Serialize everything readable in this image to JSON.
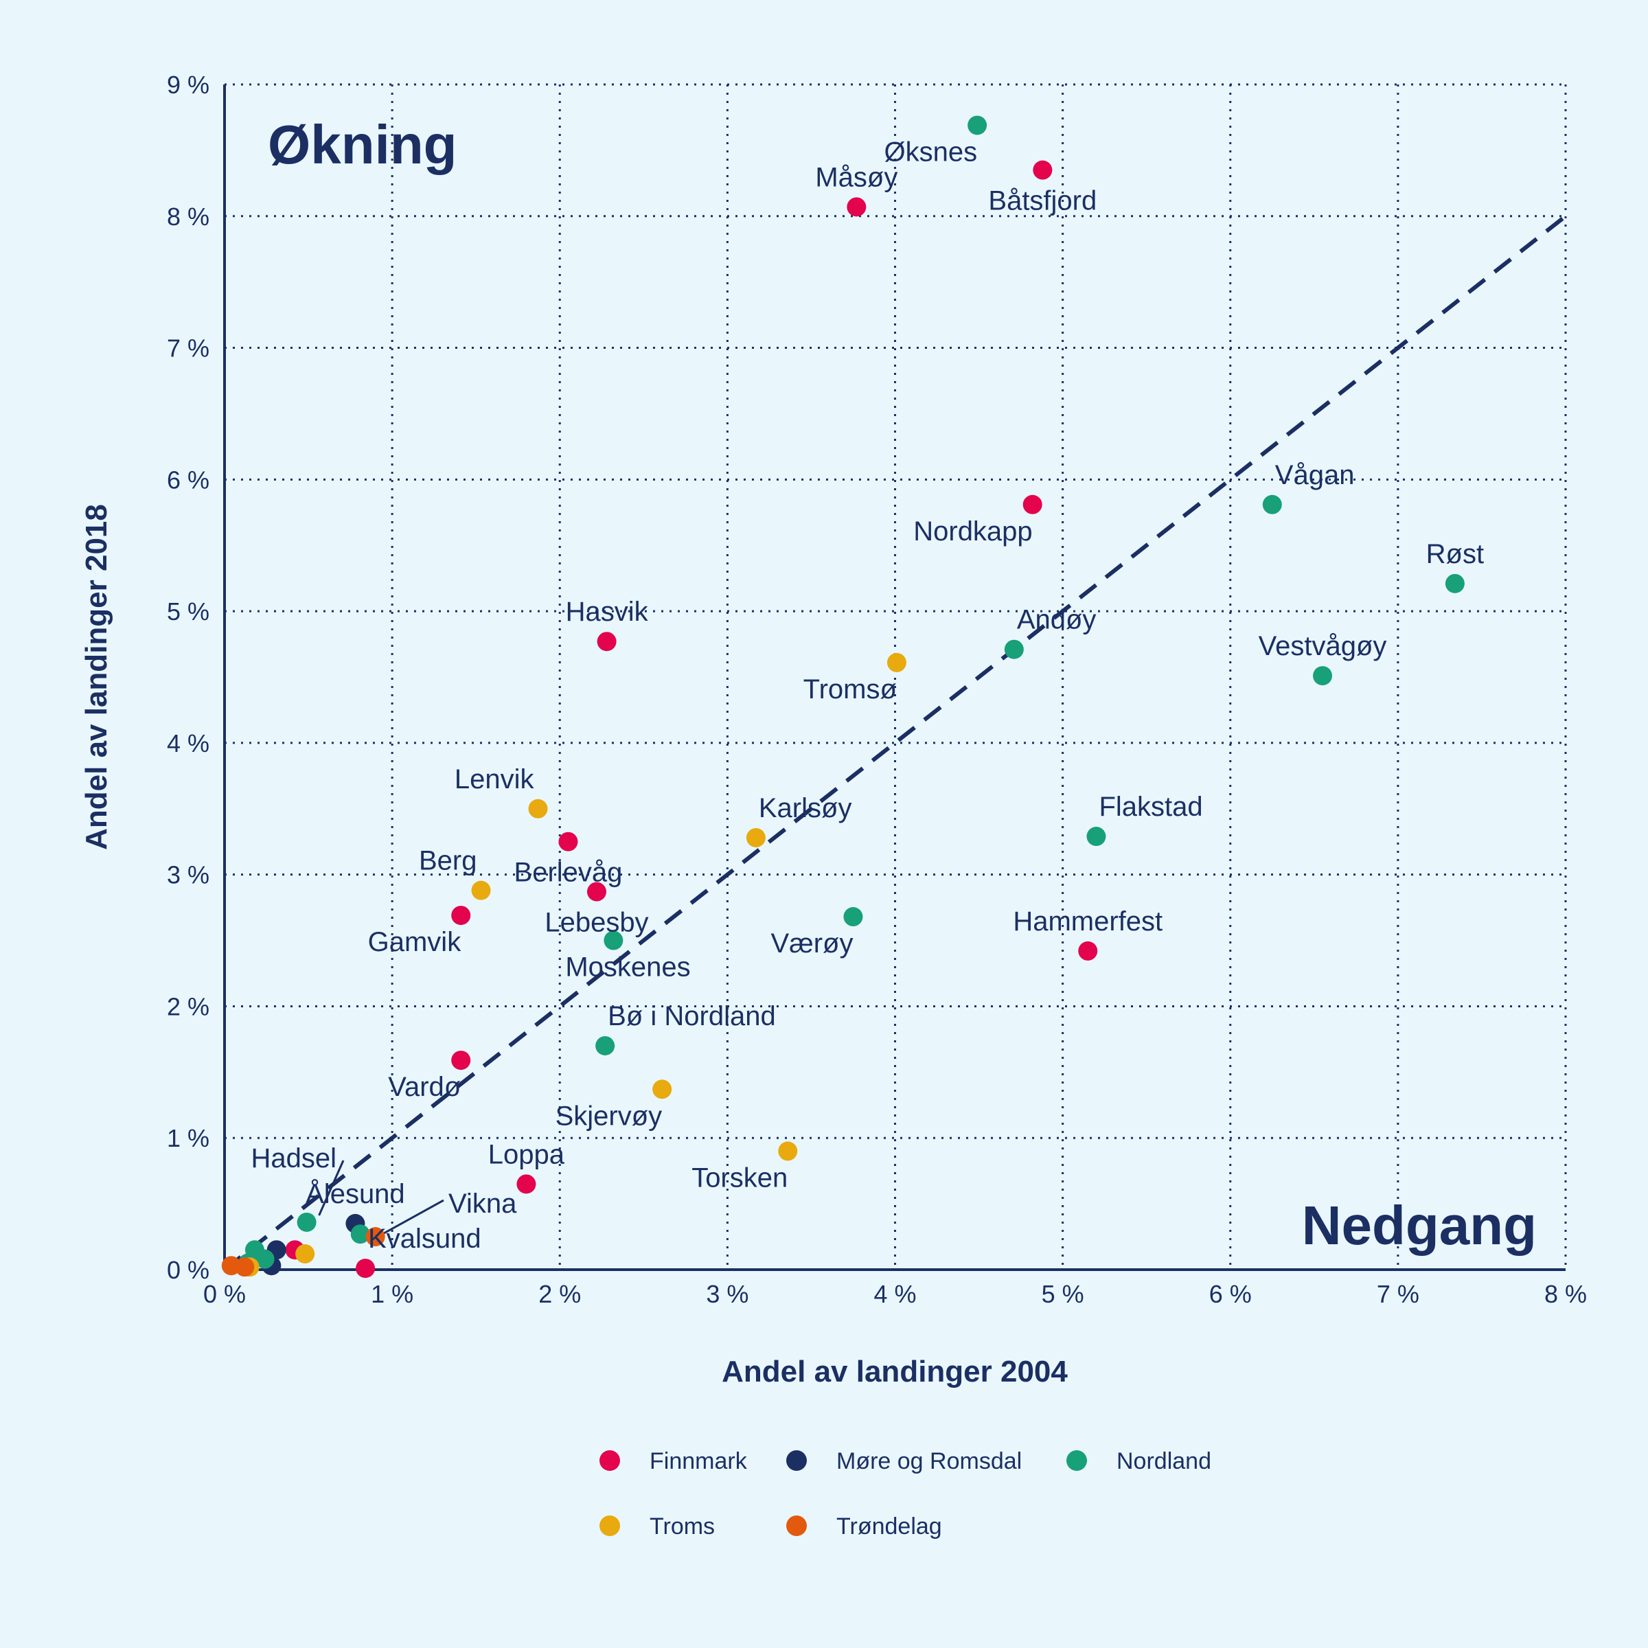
{
  "chart_data": {
    "type": "scatter",
    "xlabel": "Andel av landinger 2004",
    "ylabel": "Andel av landinger 2018",
    "xlim": [
      0,
      8
    ],
    "ylim": [
      0,
      9
    ],
    "x_ticks": [
      0,
      1,
      2,
      3,
      4,
      5,
      6,
      7,
      8
    ],
    "y_ticks": [
      0,
      1,
      2,
      3,
      4,
      5,
      6,
      7,
      8,
      9
    ],
    "tick_suffix": " %",
    "grid": "dotted",
    "reference_line": {
      "style": "dashed",
      "slope": 1,
      "from": [
        0,
        0
      ],
      "to": [
        8,
        8
      ]
    },
    "annotations": {
      "upper": "Økning",
      "lower": "Nedgang"
    },
    "legend_position": "bottom",
    "series": [
      {
        "name": "Finnmark",
        "color": "#e3044d",
        "points": [
          {
            "label": "Båtsfjord",
            "x": 4.88,
            "y": 8.35,
            "label_pos": "below"
          },
          {
            "label": "Måsøy",
            "x": 3.77,
            "y": 8.07,
            "label_pos": "above"
          },
          {
            "label": "Nordkapp",
            "x": 4.82,
            "y": 5.81,
            "label_pos": "below-left"
          },
          {
            "label": "Hasvik",
            "x": 2.28,
            "y": 4.77,
            "label_pos": "above"
          },
          {
            "label": "Berlevåg",
            "x": 2.05,
            "y": 3.25,
            "label_pos": "below"
          },
          {
            "label": "Lebesby",
            "x": 2.22,
            "y": 2.87,
            "label_pos": "below"
          },
          {
            "label": "Gamvik",
            "x": 1.41,
            "y": 2.69,
            "label_pos": "below-left"
          },
          {
            "label": "Hammerfest",
            "x": 5.15,
            "y": 2.42,
            "label_pos": "above"
          },
          {
            "label": "Vardø",
            "x": 1.41,
            "y": 1.59,
            "label_pos": "below-left"
          },
          {
            "label": "Loppa",
            "x": 1.8,
            "y": 0.65,
            "label_pos": "above"
          },
          {
            "label": "Kvalsund",
            "x": 0.84,
            "y": 0.01,
            "label_pos": "above-right"
          },
          {
            "label": "",
            "x": 0.42,
            "y": 0.15
          }
        ]
      },
      {
        "name": "Møre og Romsdal",
        "color": "#1c2f63",
        "points": [
          {
            "label": "Ålesund",
            "x": 0.78,
            "y": 0.35,
            "label_pos": "above"
          },
          {
            "label": "",
            "x": 0.31,
            "y": 0.15
          },
          {
            "label": "",
            "x": 0.2,
            "y": 0.1
          },
          {
            "label": "",
            "x": 0.28,
            "y": 0.03
          }
        ]
      },
      {
        "name": "Nordland",
        "color": "#18a079",
        "points": [
          {
            "label": "Øksnes",
            "x": 4.49,
            "y": 8.69,
            "label_pos": "below-left"
          },
          {
            "label": "Vågan",
            "x": 6.25,
            "y": 5.81,
            "label_pos": "above-right"
          },
          {
            "label": "Røst",
            "x": 7.34,
            "y": 5.21,
            "label_pos": "above"
          },
          {
            "label": "Andøy",
            "x": 4.71,
            "y": 4.71,
            "label_pos": "above-right"
          },
          {
            "label": "Vestvågøy",
            "x": 6.55,
            "y": 4.51,
            "label_pos": "above"
          },
          {
            "label": "Flakstad",
            "x": 5.2,
            "y": 3.29,
            "label_pos": "above-right"
          },
          {
            "label": "Værøy",
            "x": 3.75,
            "y": 2.68,
            "label_pos": "below-left"
          },
          {
            "label": "Moskenes",
            "x": 2.32,
            "y": 2.5,
            "label_pos": "below-right"
          },
          {
            "label": "Bø i Nordland",
            "x": 2.27,
            "y": 1.7,
            "label_pos": "above-right"
          },
          {
            "label": "Hadsel",
            "x": 0.49,
            "y": 0.36,
            "label_pos": "leader-left"
          },
          {
            "label": "",
            "x": 0.81,
            "y": 0.27
          },
          {
            "label": "",
            "x": 0.18,
            "y": 0.15
          },
          {
            "label": "",
            "x": 0.24,
            "y": 0.08
          },
          {
            "label": "",
            "x": 0.14,
            "y": 0.05
          }
        ]
      },
      {
        "name": "Troms",
        "color": "#e8aa0f",
        "points": [
          {
            "label": "Tromsø",
            "x": 4.01,
            "y": 4.61,
            "label_pos": "below-left"
          },
          {
            "label": "Lenvik",
            "x": 1.87,
            "y": 3.5,
            "label_pos": "above-left"
          },
          {
            "label": "Karlsøy",
            "x": 3.17,
            "y": 3.28,
            "label_pos": "above-right"
          },
          {
            "label": "Berg",
            "x": 1.53,
            "y": 2.88,
            "label_pos": "above-left"
          },
          {
            "label": "Skjervøy",
            "x": 2.61,
            "y": 1.37,
            "label_pos": "below-left"
          },
          {
            "label": "Torsken",
            "x": 3.36,
            "y": 0.9,
            "label_pos": "below-left"
          },
          {
            "label": "",
            "x": 0.48,
            "y": 0.12
          },
          {
            "label": "",
            "x": 0.15,
            "y": 0.02
          }
        ]
      },
      {
        "name": "Trøndelag",
        "color": "#e35a0f",
        "points": [
          {
            "label": "Vikna",
            "x": 0.9,
            "y": 0.25,
            "label_pos": "leader-right"
          },
          {
            "label": "",
            "x": 0.04,
            "y": 0.03
          },
          {
            "label": "",
            "x": 0.12,
            "y": 0.02
          }
        ]
      }
    ]
  }
}
